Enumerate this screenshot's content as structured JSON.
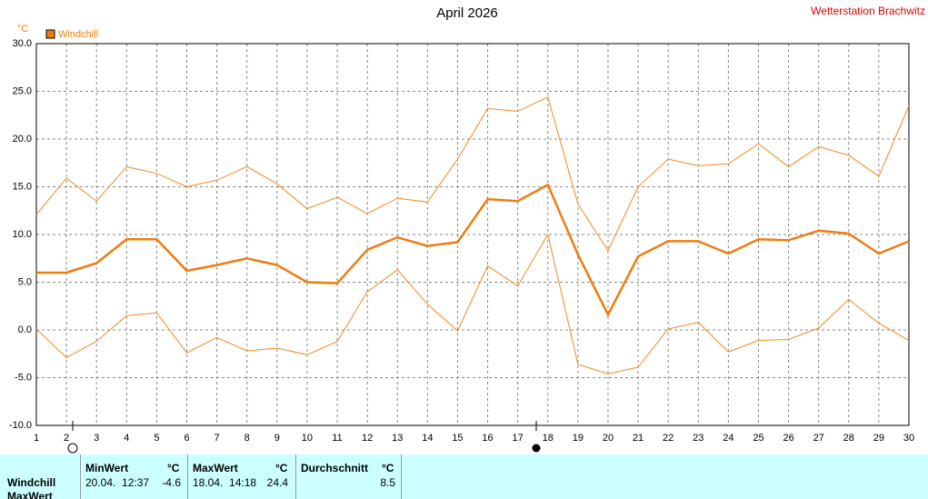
{
  "chart_data": {
    "type": "line",
    "title": "April 2026",
    "station": "Wetterstation Brachwitz",
    "y_unit": "°C",
    "categories": [
      "1",
      "2",
      "3",
      "4",
      "5",
      "6",
      "7",
      "8",
      "9",
      "10",
      "11",
      "12",
      "13",
      "14",
      "15",
      "16",
      "17",
      "18",
      "19",
      "20",
      "21",
      "22",
      "23",
      "24",
      "25",
      "26",
      "27",
      "28",
      "29",
      "30"
    ],
    "series": [
      {
        "color": "#f08a20",
        "values": [
          12.1,
          15.9,
          13.5,
          17.1,
          16.4,
          15.0,
          15.7,
          17.1,
          15.3,
          12.7,
          13.9,
          12.2,
          13.8,
          13.4,
          17.9,
          23.2,
          22.9,
          24.4,
          13.2,
          8.3,
          15.0,
          17.9,
          17.2,
          17.4,
          19.5,
          17.1,
          19.2,
          18.3,
          16.1,
          23.5
        ]
      },
      {
        "name": "Windchill",
        "color": "#ee7d10",
        "values": [
          6.0,
          6.0,
          7.0,
          9.5,
          9.5,
          6.2,
          6.8,
          7.5,
          6.8,
          5.0,
          4.9,
          8.4,
          9.7,
          8.8,
          9.2,
          13.7,
          13.5,
          15.2,
          7.9,
          1.6,
          7.7,
          9.3,
          9.3,
          8.0,
          9.5,
          9.4,
          10.4,
          10.1,
          8.0,
          9.3
        ]
      },
      {
        "color": "#f08a20",
        "values": [
          0.1,
          -2.9,
          -1.2,
          1.5,
          1.8,
          -2.4,
          -0.8,
          -2.2,
          -1.9,
          -2.6,
          -1.2,
          4.0,
          6.3,
          2.7,
          -0.1,
          6.7,
          4.6,
          10.0,
          -3.6,
          -4.6,
          -3.9,
          0.1,
          0.8,
          -2.3,
          -1.1,
          -1.0,
          0.2,
          3.2,
          0.7,
          -1.1
        ]
      }
    ],
    "ylim": [
      -10,
      30
    ],
    "yticks": [
      {
        "value": -10,
        "label": "-10.0"
      },
      {
        "value": -5,
        "label": "-5.0"
      },
      {
        "value": 0,
        "label": "0.0"
      },
      {
        "value": 5,
        "label": "5.0"
      },
      {
        "value": 10,
        "label": "10.0"
      },
      {
        "value": 15,
        "label": "15.0"
      },
      {
        "value": 20,
        "label": "20.0"
      },
      {
        "value": 25,
        "label": "25.0"
      },
      {
        "value": 30,
        "label": "30.0"
      }
    ],
    "grid": true
  },
  "table": {
    "headers": {
      "min": "MinWert",
      "max": "MaxWert",
      "avg": "Durchschnitt",
      "unit": "°C"
    },
    "row": {
      "label": "Windchill",
      "min_time": "20.04.  12:37",
      "min": -4.6,
      "max_time": "18.04.  14:18",
      "max": 24.4,
      "avg": 8.5
    },
    "next_row_label": "MaxWert"
  }
}
